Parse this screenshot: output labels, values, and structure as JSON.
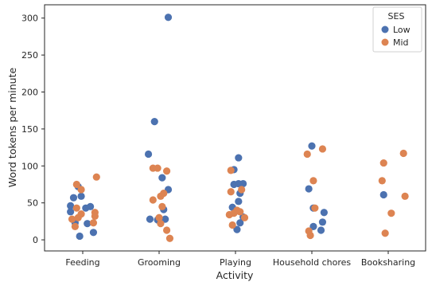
{
  "chart_data": {
    "type": "scatter",
    "xlabel": "Activity",
    "ylabel": "Word tokens per minute",
    "categories": [
      "Feeding",
      "Grooming",
      "Playing",
      "Household chores",
      "Booksharing"
    ],
    "yticks": [
      0,
      50,
      100,
      150,
      200,
      250,
      300
    ],
    "ylim": [
      -15,
      318
    ],
    "grid": false,
    "legend": {
      "title": "SES",
      "placement": "top-right",
      "entries": [
        {
          "name": "Low",
          "color": "#4c72b0"
        },
        {
          "name": "Mid",
          "color": "#dd8452"
        }
      ]
    },
    "series": [
      {
        "name": "Low",
        "color": "#4c72b0",
        "points": [
          {
            "cat": 0,
            "jitter": -0.16,
            "y": 46
          },
          {
            "cat": 0,
            "jitter": -0.12,
            "y": 57
          },
          {
            "cat": 0,
            "jitter": -0.06,
            "y": 72
          },
          {
            "cat": 0,
            "jitter": -0.02,
            "y": 59
          },
          {
            "cat": 0,
            "jitter": 0.1,
            "y": 45
          },
          {
            "cat": 0,
            "jitter": -0.16,
            "y": 38
          },
          {
            "cat": 0,
            "jitter": -0.1,
            "y": 23
          },
          {
            "cat": 0,
            "jitter": 0.04,
            "y": 43
          },
          {
            "cat": 0,
            "jitter": 0.14,
            "y": 10
          },
          {
            "cat": 0,
            "jitter": -0.04,
            "y": 5
          },
          {
            "cat": 0,
            "jitter": 0.06,
            "y": 22
          },
          {
            "cat": 1,
            "jitter": 0.12,
            "y": 301
          },
          {
            "cat": 1,
            "jitter": -0.06,
            "y": 160
          },
          {
            "cat": 1,
            "jitter": -0.14,
            "y": 116
          },
          {
            "cat": 1,
            "jitter": 0.04,
            "y": 84
          },
          {
            "cat": 1,
            "jitter": 0.12,
            "y": 68
          },
          {
            "cat": 1,
            "jitter": 0.08,
            "y": 28
          },
          {
            "cat": 1,
            "jitter": -0.12,
            "y": 28
          },
          {
            "cat": 1,
            "jitter": -0.02,
            "y": 27
          },
          {
            "cat": 1,
            "jitter": 0.06,
            "y": 41
          },
          {
            "cat": 2,
            "jitter": 0.04,
            "y": 111
          },
          {
            "cat": 2,
            "jitter": -0.02,
            "y": 95
          },
          {
            "cat": 2,
            "jitter": 0.04,
            "y": 76
          },
          {
            "cat": 2,
            "jitter": 0.1,
            "y": 76
          },
          {
            "cat": 2,
            "jitter": -0.02,
            "y": 75
          },
          {
            "cat": 2,
            "jitter": 0.06,
            "y": 63
          },
          {
            "cat": 2,
            "jitter": 0.04,
            "y": 52
          },
          {
            "cat": 2,
            "jitter": -0.04,
            "y": 44
          },
          {
            "cat": 2,
            "jitter": 0.1,
            "y": 31
          },
          {
            "cat": 2,
            "jitter": 0.06,
            "y": 23
          },
          {
            "cat": 2,
            "jitter": 0.02,
            "y": 14
          },
          {
            "cat": 3,
            "jitter": 0.0,
            "y": 127
          },
          {
            "cat": 3,
            "jitter": -0.04,
            "y": 69
          },
          {
            "cat": 3,
            "jitter": 0.02,
            "y": 43
          },
          {
            "cat": 3,
            "jitter": 0.16,
            "y": 37
          },
          {
            "cat": 3,
            "jitter": 0.14,
            "y": 24
          },
          {
            "cat": 3,
            "jitter": 0.02,
            "y": 18
          },
          {
            "cat": 3,
            "jitter": 0.12,
            "y": 13
          },
          {
            "cat": 4,
            "jitter": -0.06,
            "y": 61
          }
        ]
      },
      {
        "name": "Mid",
        "color": "#dd8452",
        "points": [
          {
            "cat": 0,
            "jitter": 0.18,
            "y": 85
          },
          {
            "cat": 0,
            "jitter": -0.08,
            "y": 75
          },
          {
            "cat": 0,
            "jitter": -0.02,
            "y": 68
          },
          {
            "cat": 0,
            "jitter": -0.08,
            "y": 43
          },
          {
            "cat": 0,
            "jitter": 0.16,
            "y": 37
          },
          {
            "cat": 0,
            "jitter": 0.16,
            "y": 32
          },
          {
            "cat": 0,
            "jitter": -0.02,
            "y": 35
          },
          {
            "cat": 0,
            "jitter": -0.06,
            "y": 30
          },
          {
            "cat": 0,
            "jitter": -0.14,
            "y": 28
          },
          {
            "cat": 0,
            "jitter": -0.1,
            "y": 18
          },
          {
            "cat": 0,
            "jitter": 0.14,
            "y": 23
          },
          {
            "cat": 1,
            "jitter": -0.08,
            "y": 97
          },
          {
            "cat": 1,
            "jitter": -0.02,
            "y": 97
          },
          {
            "cat": 1,
            "jitter": 0.1,
            "y": 93
          },
          {
            "cat": 1,
            "jitter": 0.06,
            "y": 63
          },
          {
            "cat": 1,
            "jitter": 0.02,
            "y": 59
          },
          {
            "cat": 1,
            "jitter": -0.08,
            "y": 54
          },
          {
            "cat": 1,
            "jitter": 0.04,
            "y": 45
          },
          {
            "cat": 1,
            "jitter": 0.0,
            "y": 30
          },
          {
            "cat": 1,
            "jitter": 0.02,
            "y": 22
          },
          {
            "cat": 1,
            "jitter": 0.1,
            "y": 13
          },
          {
            "cat": 1,
            "jitter": 0.14,
            "y": 2
          },
          {
            "cat": 2,
            "jitter": -0.06,
            "y": 94
          },
          {
            "cat": 2,
            "jitter": -0.06,
            "y": 65
          },
          {
            "cat": 2,
            "jitter": 0.08,
            "y": 68
          },
          {
            "cat": 2,
            "jitter": 0.02,
            "y": 40
          },
          {
            "cat": 2,
            "jitter": -0.08,
            "y": 34
          },
          {
            "cat": 2,
            "jitter": -0.02,
            "y": 36
          },
          {
            "cat": 2,
            "jitter": 0.06,
            "y": 38
          },
          {
            "cat": 2,
            "jitter": 0.12,
            "y": 30
          },
          {
            "cat": 2,
            "jitter": -0.04,
            "y": 20
          },
          {
            "cat": 3,
            "jitter": 0.14,
            "y": 123
          },
          {
            "cat": 3,
            "jitter": -0.06,
            "y": 116
          },
          {
            "cat": 3,
            "jitter": 0.02,
            "y": 80
          },
          {
            "cat": 3,
            "jitter": 0.04,
            "y": 43
          },
          {
            "cat": 3,
            "jitter": -0.04,
            "y": 12
          },
          {
            "cat": 3,
            "jitter": -0.02,
            "y": 6
          },
          {
            "cat": 4,
            "jitter": 0.2,
            "y": 117
          },
          {
            "cat": 4,
            "jitter": -0.06,
            "y": 104
          },
          {
            "cat": 4,
            "jitter": -0.08,
            "y": 80
          },
          {
            "cat": 4,
            "jitter": 0.22,
            "y": 59
          },
          {
            "cat": 4,
            "jitter": 0.04,
            "y": 36
          },
          {
            "cat": 4,
            "jitter": -0.04,
            "y": 9
          }
        ]
      }
    ]
  }
}
